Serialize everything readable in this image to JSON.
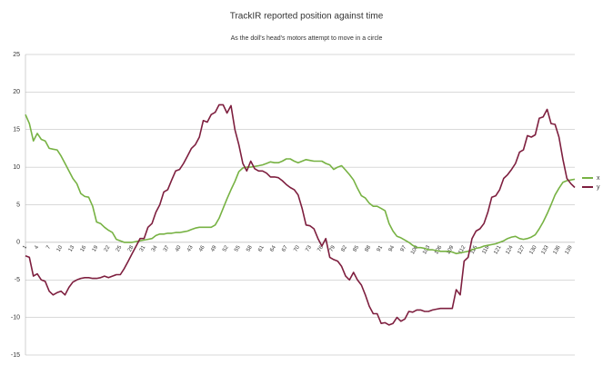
{
  "chart_data": {
    "type": "line",
    "title": "TrackIR reported position against time",
    "subtitle": "As the doll's head's motors  attempt to move in a circle",
    "categories": [
      1,
      null,
      null,
      4,
      null,
      null,
      7,
      null,
      null,
      10,
      null,
      null,
      13,
      null,
      null,
      16,
      null,
      null,
      19,
      null,
      null,
      22,
      null,
      null,
      25,
      null,
      null,
      28,
      null,
      null,
      31,
      null,
      null,
      34,
      null,
      null,
      37,
      null,
      null,
      40,
      null,
      null,
      43,
      null,
      null,
      46,
      null,
      null,
      49,
      null,
      null,
      52,
      null,
      null,
      55,
      null,
      null,
      58,
      null,
      null,
      61,
      null,
      null,
      64,
      null,
      null,
      67,
      null,
      null,
      70,
      null,
      null,
      73,
      null,
      null,
      76,
      null,
      null,
      79,
      null,
      null,
      82,
      null,
      null,
      85,
      null,
      null,
      88,
      null,
      null,
      91,
      null,
      null,
      94,
      null,
      null,
      97,
      null,
      null,
      100,
      null,
      null,
      103,
      null,
      null,
      106,
      null,
      null,
      109,
      null,
      null,
      112,
      null,
      null,
      115,
      null,
      null,
      118,
      null,
      null,
      121,
      null,
      null,
      124,
      null,
      null,
      127,
      null,
      null,
      130,
      null,
      null,
      133,
      null,
      null,
      136,
      null,
      null,
      139,
      null
    ],
    "series": [
      {
        "name": "x",
        "color": "#77b243",
        "values": [
          17,
          15.8,
          13.5,
          14.5,
          13.7,
          13.5,
          12.5,
          12.4,
          12.3,
          11.5,
          10.5,
          9.5,
          8.5,
          7.8,
          6.5,
          6.1,
          6,
          4.8,
          2.7,
          2.5,
          2,
          1.6,
          1.3,
          0.4,
          0.2,
          0,
          0,
          0,
          0.1,
          0.2,
          0.3,
          0.4,
          0.5,
          0.9,
          1.1,
          1.1,
          1.2,
          1.2,
          1.3,
          1.3,
          1.4,
          1.5,
          1.7,
          1.9,
          2,
          2,
          2,
          2,
          2.3,
          3.2,
          4.5,
          5.8,
          7,
          8.1,
          9.4,
          9.9,
          10,
          10,
          10.1,
          10.2,
          10.3,
          10.5,
          10.7,
          10.6,
          10.6,
          10.8,
          11.1,
          11.1,
          10.8,
          10.6,
          10.8,
          11,
          10.9,
          10.8,
          10.8,
          10.8,
          10.5,
          10.3,
          9.7,
          10,
          10.2,
          9.6,
          9,
          8.3,
          7.2,
          6.2,
          5.9,
          5.2,
          4.8,
          4.8,
          4.5,
          4.2,
          2.5,
          1.5,
          0.8,
          0.6,
          0.3,
          0,
          -0.4,
          -0.7,
          -0.7,
          -0.8,
          -1,
          -1,
          -1.1,
          -1.2,
          -1.2,
          -1.2,
          -1.3,
          -1.5,
          -1.4,
          -1.3,
          -1.2,
          -1,
          -0.8,
          -0.7,
          -0.5,
          -0.4,
          -0.3,
          -0.2,
          0,
          0.2,
          0.5,
          0.7,
          0.8,
          0.5,
          0.4,
          0.5,
          0.7,
          1,
          1.8,
          2.7,
          3.8,
          5,
          6.3,
          7.2,
          8,
          8.2,
          8.3,
          8.4
        ]
      },
      {
        "name": "y",
        "color": "#7e1f3f",
        "values": [
          -1.8,
          -2,
          -4.5,
          -4.2,
          -5,
          -5.2,
          -6.5,
          -7,
          -6.7,
          -6.5,
          -7,
          -6,
          -5.3,
          -5,
          -4.8,
          -4.7,
          -4.7,
          -4.8,
          -4.8,
          -4.7,
          -4.5,
          -4.7,
          -4.5,
          -4.3,
          -4.3,
          -3.5,
          -2.5,
          -1.5,
          -0.5,
          0.5,
          0.5,
          2,
          2.5,
          4,
          5,
          6.7,
          7,
          8.3,
          9.5,
          9.7,
          10.5,
          11.5,
          12.5,
          13,
          14,
          16.2,
          16,
          17,
          17.3,
          18.3,
          18.3,
          17.2,
          18.2,
          15,
          13,
          10.5,
          9.5,
          10.8,
          9.8,
          9.5,
          9.5,
          9.2,
          8.7,
          8.7,
          8.6,
          8.2,
          7.7,
          7.3,
          7,
          6.3,
          4.5,
          2.3,
          2.2,
          1.8,
          0.5,
          -0.5,
          0.5,
          -2,
          -2.3,
          -2.5,
          -3.2,
          -4.5,
          -5,
          -4,
          -5,
          -5.7,
          -7,
          -8.5,
          -9.5,
          -9.5,
          -10.8,
          -10.7,
          -11,
          -10.8,
          -10,
          -10.5,
          -10.2,
          -9.2,
          -9.3,
          -9,
          -9,
          -9.2,
          -9.2,
          -9,
          -8.9,
          -8.8,
          -8.8,
          -8.8,
          -8.8,
          -6.3,
          -7,
          -2.5,
          -2,
          0.5,
          1.5,
          1.8,
          2.5,
          4,
          6,
          6.2,
          7,
          8.5,
          9,
          9.7,
          10.5,
          12,
          12.3,
          14.2,
          14,
          14.3,
          16.5,
          16.7,
          17.7,
          15.8,
          15.7,
          14,
          11,
          8.5,
          7.8,
          7.3
        ]
      }
    ],
    "ylim": [
      -15,
      25
    ],
    "yticks": [
      -15,
      -10,
      -5,
      0,
      5,
      10,
      15,
      20,
      25
    ],
    "grid": true,
    "legend": "right"
  }
}
